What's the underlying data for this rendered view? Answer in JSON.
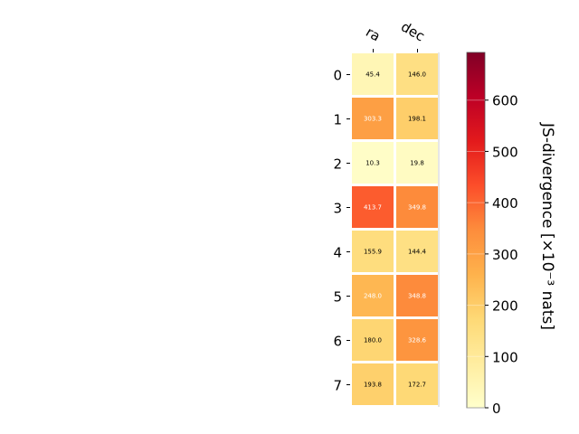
{
  "chart_data": {
    "type": "heatmap",
    "columns": [
      "ra",
      "dec"
    ],
    "rows": [
      "0",
      "1",
      "2",
      "3",
      "4",
      "5",
      "6",
      "7"
    ],
    "values": [
      [
        45.4,
        146.0
      ],
      [
        303.3,
        198.1
      ],
      [
        10.3,
        19.8
      ],
      [
        413.7,
        349.8
      ],
      [
        155.9,
        144.4
      ],
      [
        248.0,
        348.8
      ],
      [
        180.0,
        328.6
      ],
      [
        193.8,
        172.7
      ]
    ],
    "value_labels": [
      [
        "45.4",
        "146.0"
      ],
      [
        "303.3",
        "198.1"
      ],
      [
        "10.3",
        "19.8"
      ],
      [
        "413.7",
        "349.8"
      ],
      [
        "155.9",
        "144.4"
      ],
      [
        "248.0",
        "348.8"
      ],
      [
        "180.0",
        "328.6"
      ],
      [
        "193.8",
        "172.7"
      ]
    ],
    "colorbar": {
      "label": "JS-divergence [×10⁻³ nats]",
      "range": [
        0,
        693
      ],
      "ticks": [
        0,
        100,
        200,
        300,
        400,
        500,
        600
      ],
      "tick_labels": [
        "0",
        "100",
        "200",
        "300",
        "400",
        "500",
        "600"
      ],
      "colormap": "YlOrRd"
    },
    "label_text_colors": {
      "dark": "#000000",
      "light": "#ffffff"
    },
    "light_label_threshold": 230,
    "grid": false
  }
}
